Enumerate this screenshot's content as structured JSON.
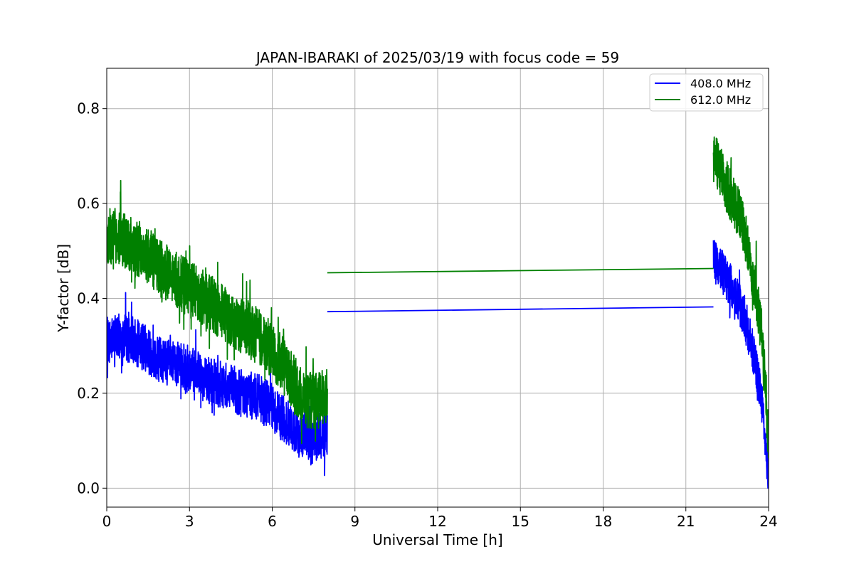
{
  "chart_data": {
    "type": "line",
    "title": "JAPAN-IBARAKI of 2025/03/19 with focus code = 59",
    "xlabel": "Universal Time [h]",
    "ylabel": "Y-factor [dB]",
    "xlim": [
      0,
      24
    ],
    "ylim": [
      -0.04,
      0.885
    ],
    "xticks": [
      0,
      3,
      6,
      9,
      12,
      15,
      18,
      21,
      24
    ],
    "yticks": [
      0.0,
      0.2,
      0.4,
      0.6,
      0.8
    ],
    "xtick_labels": [
      "0",
      "3",
      "6",
      "9",
      "12",
      "15",
      "18",
      "21",
      "24"
    ],
    "ytick_labels": [
      "0.0",
      "0.2",
      "0.4",
      "0.6",
      "0.8"
    ],
    "grid": true,
    "legend_position": "top-right",
    "series": [
      {
        "name": "408.0 MHz",
        "color": "#0000ff",
        "segments": [
          {
            "x": [
              0,
              0.5,
              1,
              1.5,
              2,
              2.5,
              3,
              3.5,
              4,
              4.5,
              5,
              5.5,
              6,
              6.5,
              7,
              7.5,
              8
            ],
            "y": [
              0.31,
              0.32,
              0.31,
              0.29,
              0.27,
              0.26,
              0.25,
              0.23,
              0.22,
              0.21,
              0.2,
              0.19,
              0.17,
              0.14,
              0.11,
              0.1,
              0.12
            ],
            "noise": 0.05,
            "min": 0.005
          },
          {
            "x": [
              8,
              22
            ],
            "y": [
              0.372,
              0.382
            ],
            "noise": 0
          },
          {
            "x": [
              22,
              22.3,
              22.6,
              23,
              23.3,
              23.6,
              23.8,
              24
            ],
            "y": [
              0.48,
              0.46,
              0.43,
              0.38,
              0.32,
              0.24,
              0.16,
              0.02
            ],
            "noise": 0.045,
            "min": 0.0
          }
        ]
      },
      {
        "name": "612.0 MHz",
        "color": "#008000",
        "segments": [
          {
            "x": [
              0,
              0.5,
              1,
              1.5,
              2,
              2.5,
              3,
              3.5,
              4,
              4.5,
              5,
              5.5,
              6,
              6.5,
              7,
              7.5,
              8
            ],
            "y": [
              0.53,
              0.53,
              0.51,
              0.49,
              0.46,
              0.44,
              0.42,
              0.4,
              0.38,
              0.36,
              0.34,
              0.32,
              0.29,
              0.25,
              0.2,
              0.18,
              0.2
            ],
            "noise": 0.06,
            "min": 0.01
          },
          {
            "x": [
              8,
              22
            ],
            "y": [
              0.454,
              0.463
            ],
            "noise": 0
          },
          {
            "x": [
              22,
              22.3,
              22.6,
              23,
              23.3,
              23.6,
              23.8,
              24
            ],
            "y": [
              0.7,
              0.66,
              0.62,
              0.57,
              0.49,
              0.39,
              0.3,
              0.1
            ],
            "noise": 0.055,
            "min": 0.0
          }
        ]
      }
    ]
  }
}
